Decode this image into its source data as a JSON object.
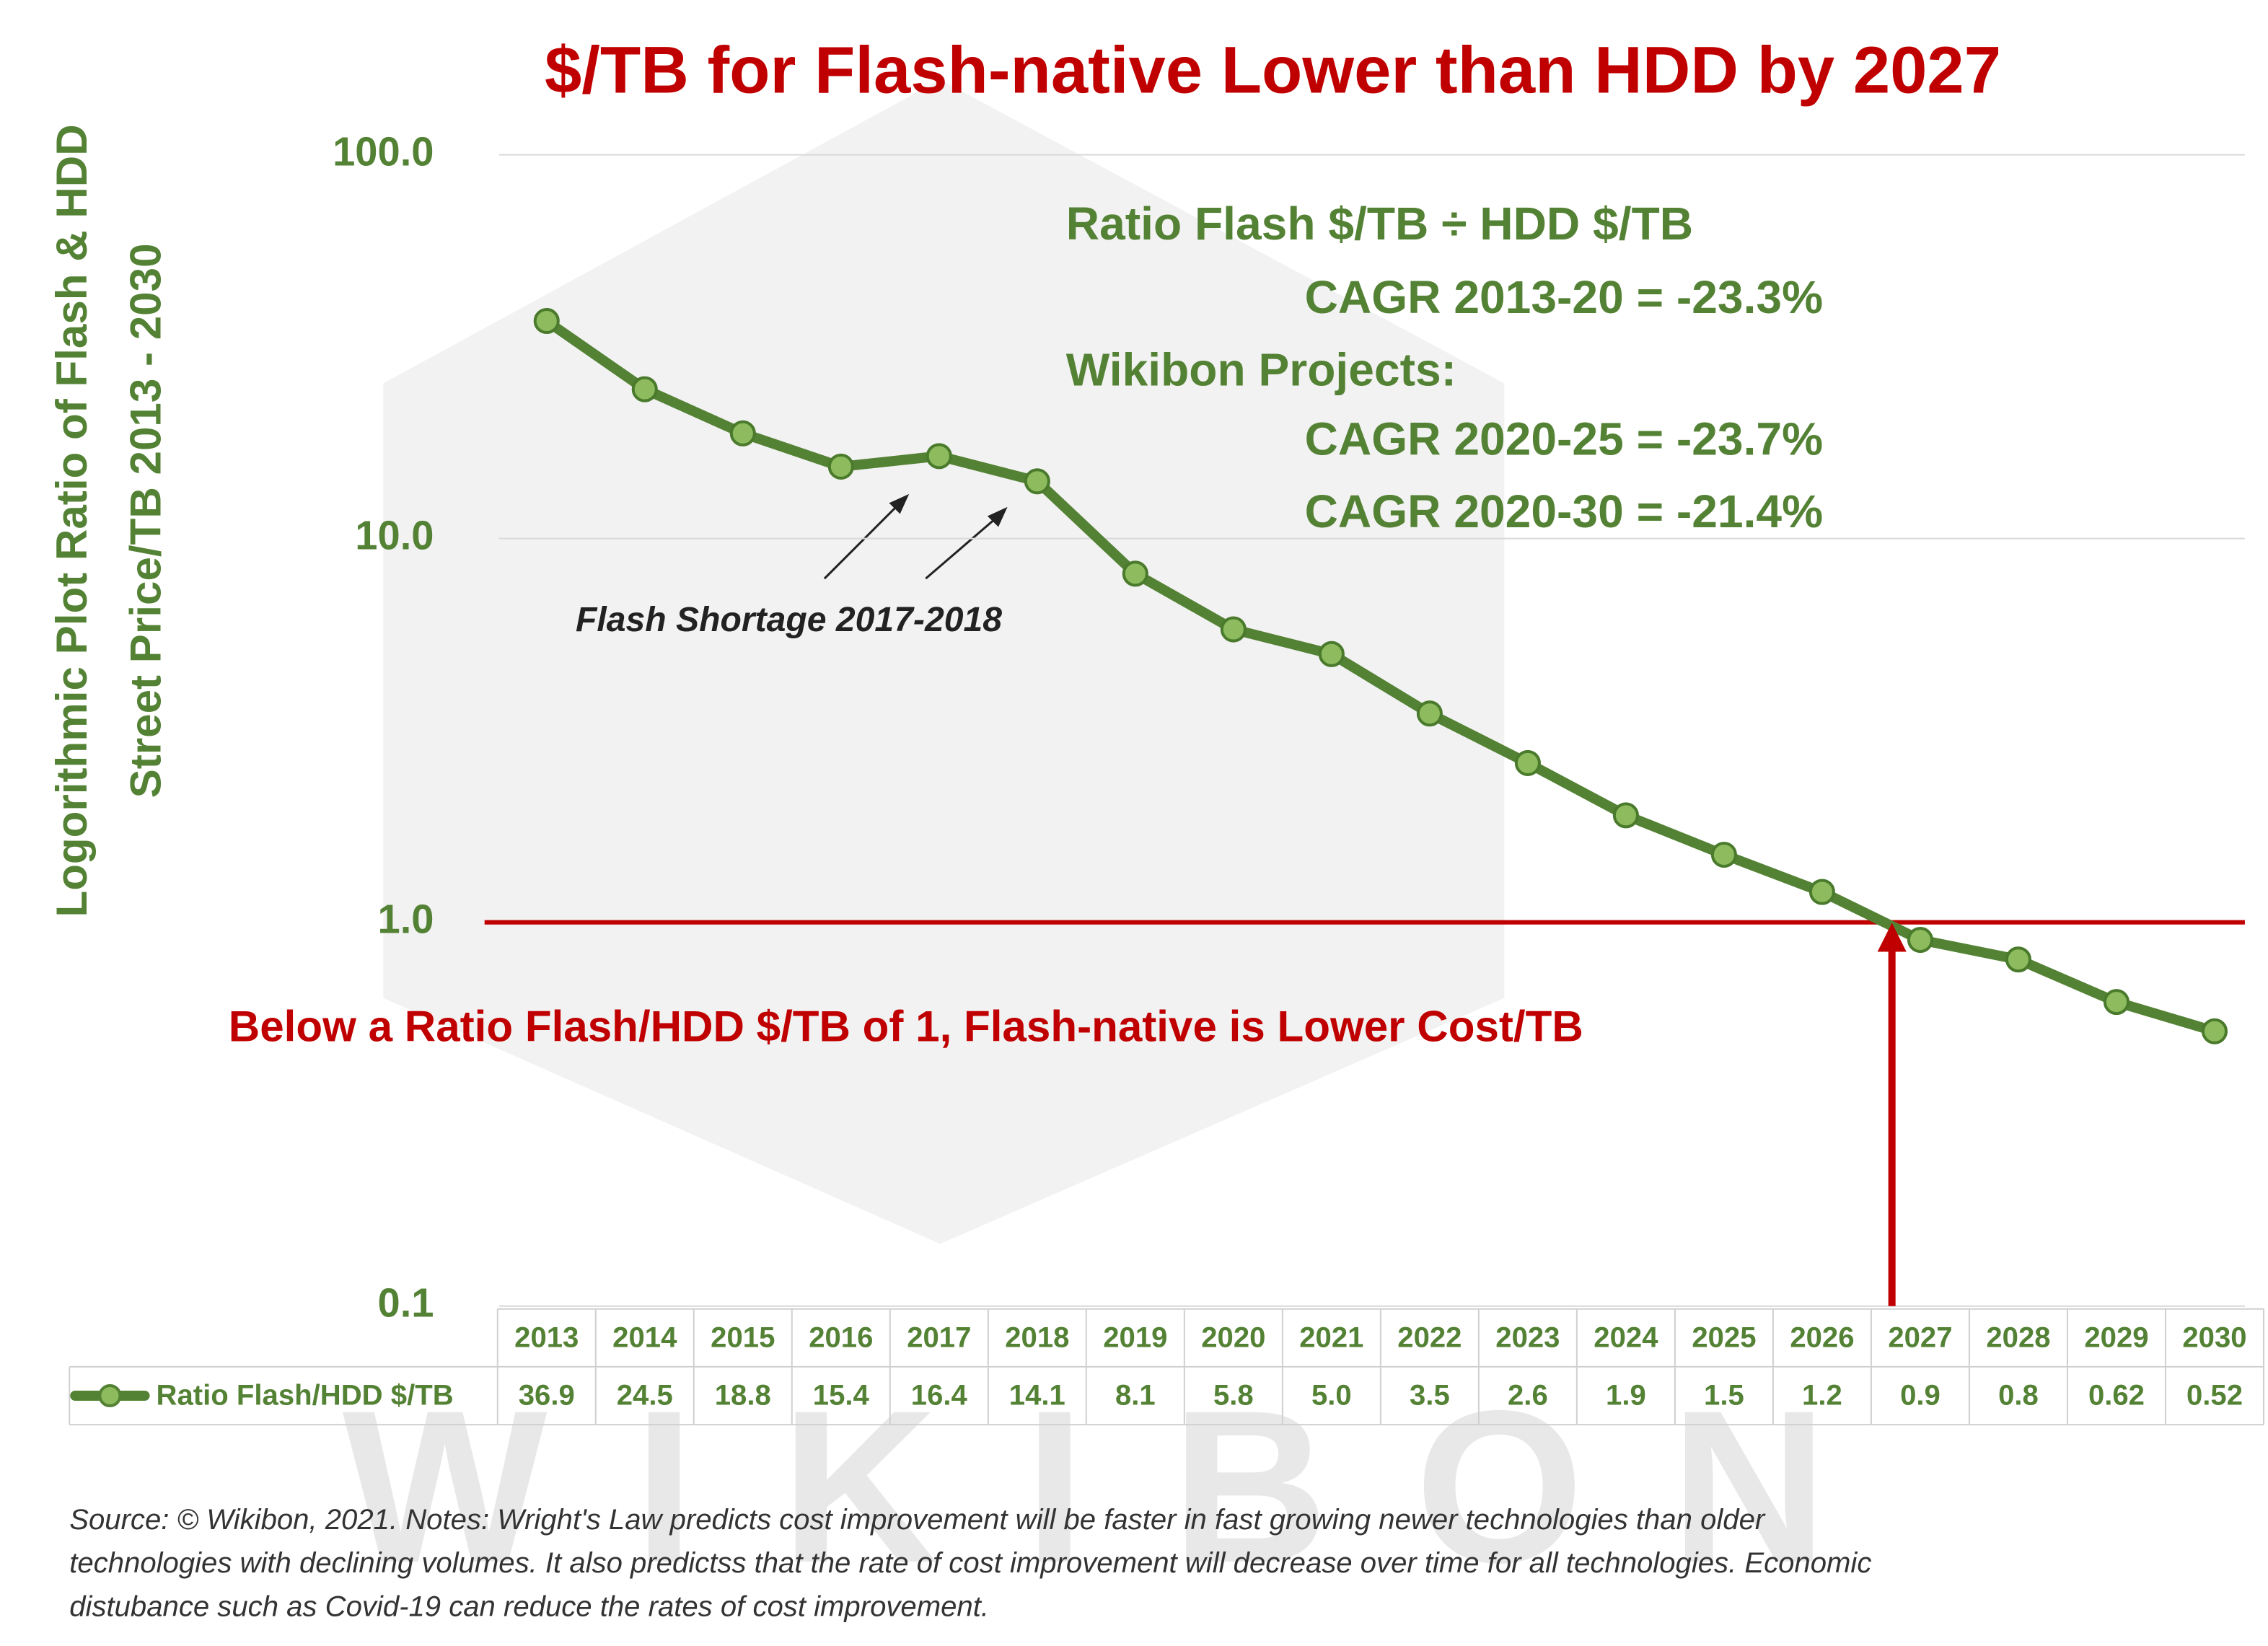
{
  "chart_data": {
    "type": "line",
    "title": "$/TB for Flash-native Lower than HDD by 2027",
    "ylabel": [
      "Logorithmic Plot Ratio of Flash & HDD",
      "Street Price/TB 2013 - 2030"
    ],
    "callout": [
      "Ratio Flash $/TB ÷ HDD $/TB",
      "CAGR 2013-20 = -23.3%",
      "Wikibon Projects:",
      "CAGR 2020-25 = -23.7%",
      "CAGR 2020-30 = -21.4%"
    ],
    "shortage_note": "Flash Shortage 2017-2018",
    "threshold_note": "Below a Ratio Flash/HDD $/TB of 1, Flash-native is Lower Cost/TB",
    "source": [
      "Source: © Wikibon, 2021. Notes: Wright's Law predicts cost improvement will be faster in fast growing newer technologies than older",
      "technologies with declining volumes. It also predictss that the rate of cost improvement will decrease over time for all technologies. Economic",
      "distubance such as Covid-19 can reduce the rates of cost improvement."
    ],
    "watermark": "WIKIBON",
    "log_y": true,
    "grid": true,
    "ylim": [
      0.1,
      100
    ],
    "yticks": [
      0.1,
      {
        "value": 1,
        "label": "1.0"
      },
      {
        "value": 10,
        "label": "10.0"
      },
      {
        "value": 100,
        "label": "100.0"
      }
    ],
    "categories": [
      "2013",
      "2014",
      "2015",
      "2016",
      "2017",
      "2018",
      "2019",
      "2020",
      "2021",
      "2022",
      "2023",
      "2024",
      "2025",
      "2026",
      "2027",
      "2028",
      "2029",
      "2030"
    ],
    "series": [
      {
        "name": "Ratio Flash/HDD $/TB",
        "color": "#548235",
        "values": [
          36.9,
          24.5,
          18.8,
          15.4,
          16.4,
          14.1,
          8.1,
          5.8,
          5.0,
          3.5,
          2.6,
          1.9,
          1.5,
          1.2,
          0.9,
          0.8,
          0.62,
          0.52
        ],
        "value_labels": [
          "36.9",
          "24.5",
          "18.8",
          "15.4",
          "16.4",
          "14.1",
          "8.1",
          "5.8",
          "5.0",
          "3.5",
          "2.6",
          "1.9",
          "1.5",
          "1.2",
          "0.9",
          "0.8",
          "0.62",
          "0.52"
        ]
      }
    ]
  }
}
